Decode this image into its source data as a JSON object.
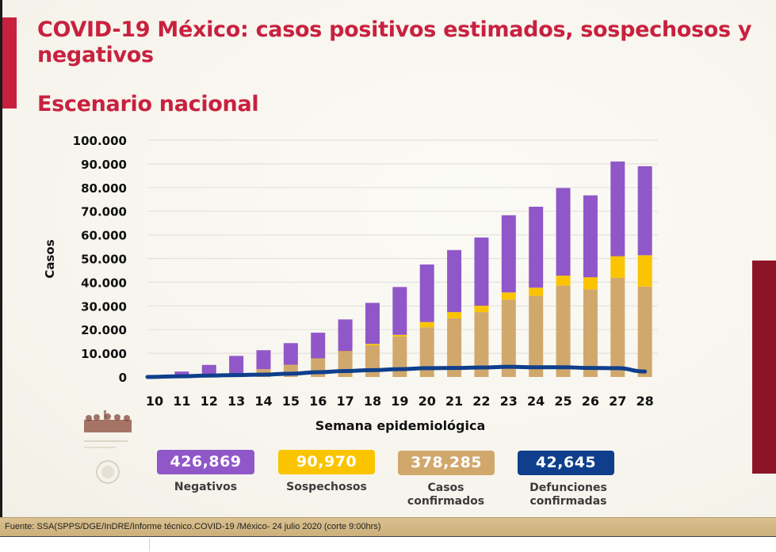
{
  "slide": {
    "title": "COVID-19 México: casos positivos estimados, sospechosos y negativos",
    "subtitle": "Escenario nacional",
    "footer": "Fuente: SSA(SPPS/DGE/InDRE/Informe técnico.COVID-19 /México- 24 julio 2020 (corte 9:00hrs)"
  },
  "colors": {
    "title": "#c8213f",
    "negativos": "#9057c9",
    "sospechosos": "#fbc400",
    "confirmados": "#d1a86c",
    "defunciones": "#0f3f8c"
  },
  "legend": [
    {
      "key": "negativos",
      "value": "426,869",
      "label": "Negativos"
    },
    {
      "key": "sospechosos",
      "value": "90,970",
      "label": "Sospechosos"
    },
    {
      "key": "confirmados",
      "value": "378,285",
      "label": "Casos confirmados"
    },
    {
      "key": "defunciones",
      "value": "42,645",
      "label": "Defunciones confirmadas"
    }
  ],
  "chart_data": {
    "type": "bar",
    "stacked": true,
    "title": "Escenario nacional",
    "xlabel": "Semana epidemiológica",
    "ylabel": "Casos",
    "ylim": [
      0,
      100000
    ],
    "yticks": [
      0,
      10000,
      20000,
      30000,
      40000,
      50000,
      60000,
      70000,
      80000,
      90000,
      100000
    ],
    "ytick_labels": [
      "0",
      "10.000",
      "20.000",
      "30.000",
      "40.000",
      "50.000",
      "60.000",
      "70.000",
      "80.000",
      "90.000",
      "100.000"
    ],
    "grid": true,
    "categories": [
      "10",
      "11",
      "12",
      "13",
      "14",
      "15",
      "16",
      "17",
      "18",
      "19",
      "20",
      "21",
      "22",
      "23",
      "24",
      "25",
      "26",
      "27",
      "28"
    ],
    "series": [
      {
        "name": "Casos confirmados",
        "key": "confirmados",
        "type": "bar",
        "values": [
          0,
          100,
          300,
          700,
          3300,
          5000,
          7700,
          10700,
          13400,
          17100,
          21000,
          24800,
          27400,
          32700,
          34300,
          38600,
          37000,
          41900,
          38200
        ]
      },
      {
        "name": "Sospechosos",
        "key": "sospechosos",
        "type": "bar",
        "values": [
          0,
          0,
          0,
          0,
          0,
          100,
          100,
          200,
          600,
          700,
          2200,
          2600,
          2700,
          3000,
          3400,
          4200,
          5100,
          9100,
          13200
        ]
      },
      {
        "name": "Negativos",
        "key": "negativos",
        "type": "bar",
        "values": [
          300,
          2200,
          4800,
          8200,
          8000,
          9200,
          10900,
          13400,
          17300,
          20200,
          24300,
          26200,
          28800,
          32600,
          34200,
          37000,
          34600,
          40000,
          37600
        ]
      },
      {
        "name": "Defunciones confirmadas",
        "key": "defunciones",
        "type": "line",
        "values": [
          0,
          300,
          600,
          800,
          1000,
          1400,
          2000,
          2500,
          2900,
          3300,
          3700,
          3800,
          4000,
          4300,
          4100,
          4100,
          3800,
          3700,
          2300
        ]
      }
    ]
  }
}
